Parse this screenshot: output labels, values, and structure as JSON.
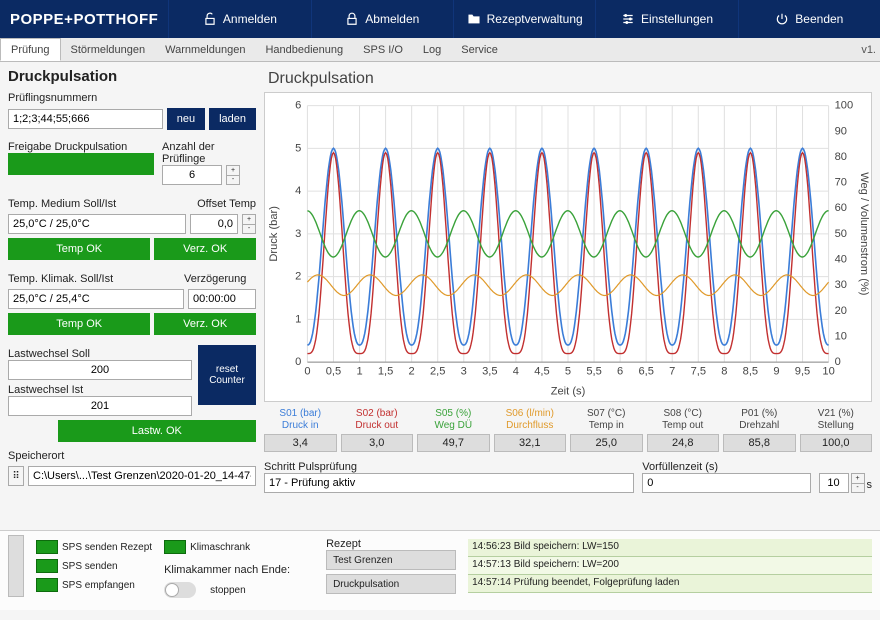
{
  "brand": "POPPE+POTTHOFF",
  "top": {
    "login": "Anmelden",
    "logout": "Abmelden",
    "recipe": "Rezeptverwaltung",
    "settings": "Einstellungen",
    "exit": "Beenden"
  },
  "tabs": [
    "Prüfung",
    "Störmeldungen",
    "Warnmeldungen",
    "Handbedienung",
    "SPS I/O",
    "Log",
    "Service"
  ],
  "version": "v1.",
  "panel": {
    "title": "Druckpulsation",
    "pruef_num_lab": "Prüflingsnummern",
    "pruef_num_val": "1;2;3;44;55;666",
    "neu": "neu",
    "laden": "laden",
    "freigabe_lab": "Freigabe Druckpulsation",
    "anzahl_lab": "Anzahl der Prüflinge",
    "anzahl_val": "6",
    "temp_med_lab": "Temp. Medium Soll/Ist",
    "offset_lab": "Offset Temp",
    "temp_med_val": "25,0°C / 25,0°C",
    "offset_val": "0,0",
    "temp_ok": "Temp OK",
    "verz_ok": "Verz. OK",
    "temp_klim_lab": "Temp. Klimak. Soll/Ist",
    "verzog_lab": "Verzögerung",
    "temp_klim_val": "25,0°C / 25,4°C",
    "verzog_val": "00:00:00",
    "lw_soll_lab": "Lastwechsel Soll",
    "lw_soll_val": "200",
    "lw_ist_lab": "Lastwechsel Ist",
    "lw_ist_val": "201",
    "reset": "reset Counter",
    "lastw_ok": "Lastw. OK",
    "speicherort_lab": "Speicherort",
    "speicherort_val": "C:\\Users\\...\\Test Grenzen\\2020-01-20_14-47-01"
  },
  "chart": {
    "title": "Druckpulsation",
    "xlabel": "Zeit (s)",
    "ylabel_left": "Druck (bar)",
    "ylabel_right": "Weg / Volumenstrom (%)",
    "xlim": [
      0,
      10
    ],
    "xtick_step": 0.5,
    "ylim_left": [
      0,
      6
    ],
    "ytick_left_step": 1,
    "ylim_right": [
      0,
      100
    ],
    "ytick_right_step": 10,
    "colors": {
      "s01": "#3b7dd8",
      "s02": "#c23030",
      "s05": "#3aa23a",
      "s06": "#e09a2b",
      "grid": "#e0e0e0",
      "axis": "#888888"
    },
    "cycles": 10
  },
  "meters": [
    {
      "n": "S01 (bar)",
      "d": "Druck in",
      "v": "3,4",
      "c": "#3b7dd8"
    },
    {
      "n": "S02 (bar)",
      "d": "Druck out",
      "v": "3,0",
      "c": "#c23030"
    },
    {
      "n": "S05 (%)",
      "d": "Weg DÜ",
      "v": "49,7",
      "c": "#3aa23a"
    },
    {
      "n": "S06 (l/min)",
      "d": "Durchfluss",
      "v": "32,1",
      "c": "#e09a2b"
    },
    {
      "n": "S07 (°C)",
      "d": "Temp in",
      "v": "25,0",
      "c": "#444"
    },
    {
      "n": "S08 (°C)",
      "d": "Temp out",
      "v": "24,8",
      "c": "#444"
    },
    {
      "n": "P01 (%)",
      "d": "Drehzahl",
      "v": "85,8",
      "c": "#444"
    },
    {
      "n": "V21 (%)",
      "d": "Stellung",
      "v": "100,0",
      "c": "#444"
    }
  ],
  "schritt_lab": "Schritt Pulsprüfung",
  "schritt_val": "17 - Prüfung aktiv",
  "vorfuell_lab": "Vorfüllenzeit (s)",
  "vorfuell_val": "0",
  "vorfuell_step": "10",
  "vorfuell_unit": "s",
  "footer": {
    "sps_rezept": "SPS senden Rezept",
    "sps_senden": "SPS senden",
    "sps_empf": "SPS empfangen",
    "klima": "Klimaschrank",
    "klima_ende": "Klimakammer nach Ende:",
    "stoppen": "stoppen",
    "rezept_lab": "Rezept",
    "rezept_btns": [
      "Test Grenzen",
      "Druckpulsation"
    ],
    "log": [
      "14:56:23 Bild speichern: LW=150",
      "14:57:13 Bild speichern: LW=200",
      "14:57:14 Prüfung beendet, Folgeprüfung laden"
    ]
  }
}
